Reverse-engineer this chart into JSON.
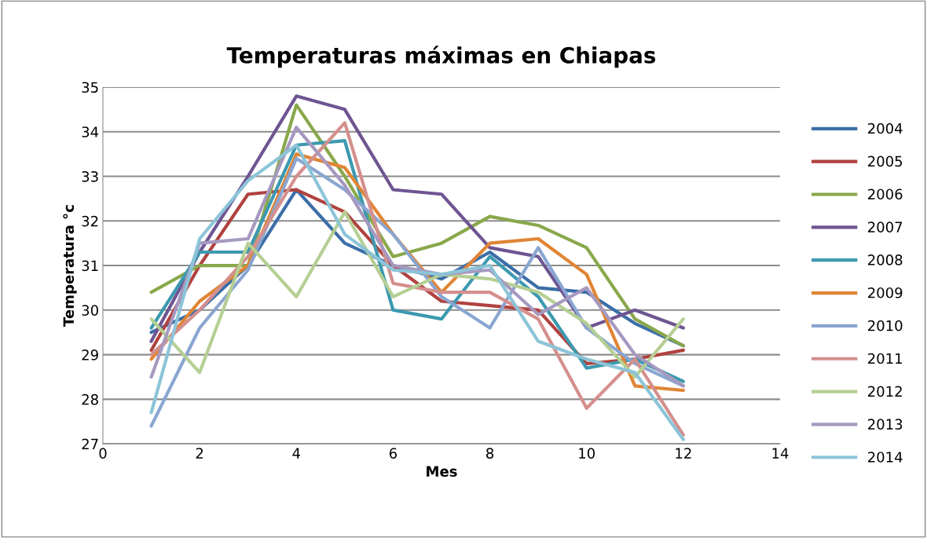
{
  "chart_data": {
    "type": "line",
    "title": "Temperaturas máximas en Chiapas",
    "xlabel": "Mes",
    "ylabel": "Temperatura °c",
    "x": [
      1,
      2,
      3,
      4,
      5,
      6,
      7,
      8,
      9,
      10,
      11,
      12
    ],
    "xlim": [
      0,
      14
    ],
    "xticks": [
      0,
      2,
      4,
      6,
      8,
      10,
      12,
      14
    ],
    "ylim": [
      27,
      35
    ],
    "yticks": [
      27,
      28,
      29,
      30,
      31,
      32,
      33,
      34,
      35
    ],
    "grid": "y",
    "legend": "right",
    "marker": "none",
    "line_style": "solid",
    "series": [
      {
        "name": "2004",
        "color": "#3c6ea8",
        "values": [
          29.5,
          30.0,
          31.0,
          32.7,
          31.5,
          31.0,
          30.7,
          31.3,
          30.5,
          30.4,
          29.7,
          29.2
        ]
      },
      {
        "name": "2005",
        "color": "#b0423f",
        "values": [
          29.1,
          31.0,
          32.6,
          32.7,
          32.2,
          31.0,
          30.2,
          30.1,
          30.0,
          28.8,
          28.9,
          29.1
        ]
      },
      {
        "name": "2006",
        "color": "#89a84b",
        "values": [
          30.4,
          31.0,
          31.0,
          34.6,
          33.0,
          31.2,
          31.5,
          32.1,
          31.9,
          31.4,
          29.8,
          29.2
        ]
      },
      {
        "name": "2007",
        "color": "#6e5592",
        "values": [
          29.3,
          31.3,
          33.0,
          34.8,
          34.5,
          32.7,
          32.6,
          31.4,
          31.2,
          29.6,
          30.0,
          29.6
        ]
      },
      {
        "name": "2008",
        "color": "#3c99b0",
        "values": [
          29.6,
          31.3,
          31.3,
          33.7,
          33.8,
          30.0,
          29.8,
          31.2,
          30.3,
          28.7,
          28.9,
          28.4
        ]
      },
      {
        "name": "2009",
        "color": "#e08535",
        "values": [
          28.9,
          30.2,
          31.0,
          33.5,
          33.2,
          31.7,
          30.4,
          31.5,
          31.6,
          30.8,
          28.3,
          28.2
        ]
      },
      {
        "name": "2010",
        "color": "#8aa6d1",
        "values": [
          27.4,
          29.6,
          30.9,
          33.4,
          32.7,
          31.7,
          30.3,
          29.6,
          31.4,
          29.6,
          28.8,
          28.3
        ]
      },
      {
        "name": "2011",
        "color": "#d48f8d",
        "values": [
          29.0,
          30.0,
          31.2,
          33.0,
          34.2,
          30.6,
          30.4,
          30.4,
          29.8,
          27.8,
          28.9,
          27.2
        ]
      },
      {
        "name": "2012",
        "color": "#b5cf93",
        "values": [
          29.8,
          28.6,
          31.5,
          30.3,
          32.2,
          30.3,
          30.8,
          30.7,
          30.4,
          29.7,
          28.5,
          29.8
        ]
      },
      {
        "name": "2013",
        "color": "#a699c0",
        "values": [
          28.5,
          31.5,
          31.6,
          34.1,
          32.8,
          31.0,
          30.8,
          30.9,
          29.9,
          30.5,
          29.0,
          28.3
        ]
      },
      {
        "name": "2014",
        "color": "#8cc4d8",
        "values": [
          27.7,
          31.6,
          32.9,
          33.7,
          31.7,
          30.9,
          30.8,
          31.0,
          29.3,
          28.9,
          28.6,
          27.1
        ]
      }
    ]
  }
}
